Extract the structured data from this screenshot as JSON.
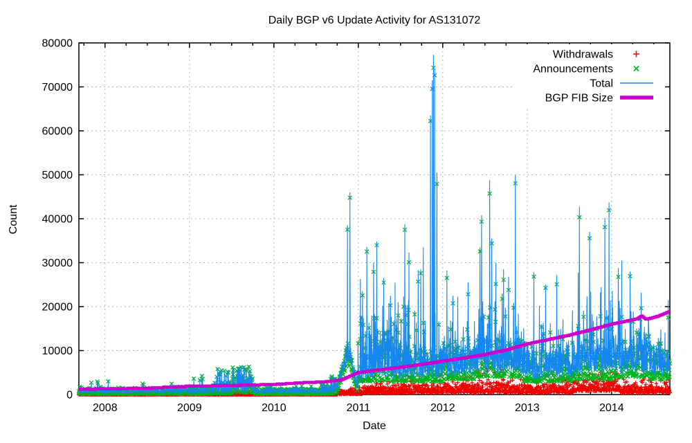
{
  "chart_data": {
    "type": "line+scatter",
    "title": "Daily BGP v6 Update Activity for AS131072",
    "xlabel": "Date",
    "ylabel": "Count",
    "x_domain": [
      2007.69,
      2014.69
    ],
    "y_range": [
      0,
      80000
    ],
    "grid": true,
    "x_ticks": [
      {
        "year": 2008,
        "label": "2008"
      },
      {
        "year": 2009,
        "label": "2009"
      },
      {
        "year": 2010,
        "label": "2010"
      },
      {
        "year": 2011,
        "label": "2011"
      },
      {
        "year": 2012,
        "label": "2012"
      },
      {
        "year": 2013,
        "label": "2013"
      },
      {
        "year": 2014,
        "label": "2014"
      }
    ],
    "x_minor_tick_step": 0.25,
    "y_ticks": [
      {
        "value": 0,
        "label": "0"
      },
      {
        "value": 10000,
        "label": "10000"
      },
      {
        "value": 20000,
        "label": "20000"
      },
      {
        "value": 30000,
        "label": "30000"
      },
      {
        "value": 40000,
        "label": "40000"
      },
      {
        "value": 50000,
        "label": "50000"
      },
      {
        "value": 60000,
        "label": "60000"
      },
      {
        "value": 70000,
        "label": "70000"
      },
      {
        "value": 80000,
        "label": "80000"
      }
    ],
    "colors": {
      "withdrawals": "#ee0000",
      "announcements": "#00b31e",
      "total": "#1787f0",
      "fib": "#cc00cc",
      "grid": "#b3b3b3",
      "axis": "#000000"
    },
    "legend": [
      {
        "label": "Withdrawals",
        "marker": "plus-marker",
        "series": "withdrawals"
      },
      {
        "label": "Announcements",
        "marker": "cross-marker",
        "series": "announcements"
      },
      {
        "label": "Total",
        "marker": "line-sample",
        "series": "total"
      },
      {
        "label": "BGP FIB Size",
        "marker": "thick-line-sample",
        "series": "fib"
      }
    ],
    "series": {
      "withdrawals": {
        "style": "scatter-plus",
        "envelope": [
          [
            2007.69,
            2010.75,
            5,
            180,
            500,
            0.03
          ],
          [
            2010.75,
            2011.05,
            100,
            900,
            1800,
            0.08
          ],
          [
            2011.05,
            2011.55,
            300,
            1800,
            3200,
            0.08
          ],
          [
            2011.55,
            2012.4,
            400,
            2200,
            4200,
            0.08
          ],
          [
            2012.4,
            2012.75,
            500,
            2800,
            6000,
            0.1
          ],
          [
            2012.75,
            2013.55,
            400,
            2200,
            4000,
            0.08
          ],
          [
            2013.55,
            2014.1,
            800,
            3400,
            5200,
            0.1
          ],
          [
            2014.1,
            2014.7,
            400,
            2000,
            3600,
            0.08
          ]
        ]
      },
      "announcements": {
        "style": "scatter-cross",
        "envelope": [
          [
            2007.69,
            2009.28,
            120,
            1500,
            4600,
            0.03
          ],
          [
            2009.28,
            2009.56,
            250,
            2800,
            6300,
            0.1
          ],
          [
            2009.56,
            2009.76,
            500,
            4200,
            6300,
            0.12
          ],
          [
            2009.76,
            2010.55,
            120,
            1300,
            2800,
            0.04
          ],
          [
            2010.55,
            2010.76,
            200,
            2200,
            5000,
            0.08
          ],
          [
            2010.99,
            2011.5,
            3000,
            12500,
            17500,
            0.1
          ],
          [
            2011.5,
            2012.0,
            3000,
            11000,
            20000,
            0.08
          ],
          [
            2012.0,
            2012.4,
            3500,
            10500,
            16000,
            0.08
          ],
          [
            2012.4,
            2012.95,
            4000,
            12500,
            22000,
            0.1
          ],
          [
            2012.95,
            2013.6,
            3000,
            9500,
            16000,
            0.07
          ],
          [
            2013.6,
            2014.05,
            3500,
            11000,
            18000,
            0.09
          ],
          [
            2014.05,
            2014.45,
            4000,
            12500,
            18500,
            0.1
          ],
          [
            2014.45,
            2014.7,
            3500,
            10500,
            15500,
            0.07
          ]
        ],
        "ramp_hump": {
          "start": 2010.76,
          "peak": 2010.875,
          "end": 2010.99,
          "min_base": 800,
          "min_peak": 7300,
          "max_base": 2500,
          "max_peak": 12000
        }
      },
      "total": {
        "style": "line"
      },
      "bgp_fib_size": {
        "style": "thick-line",
        "points": [
          [
            2007.69,
            1200
          ],
          [
            2008.0,
            1300
          ],
          [
            2008.5,
            1450
          ],
          [
            2009.0,
            1900
          ],
          [
            2009.5,
            2050
          ],
          [
            2010.0,
            2300
          ],
          [
            2010.35,
            2700
          ],
          [
            2010.6,
            2900
          ],
          [
            2010.8,
            3300
          ],
          [
            2011.0,
            5000
          ],
          [
            2011.25,
            5600
          ],
          [
            2011.5,
            6200
          ],
          [
            2011.84,
            7100
          ],
          [
            2012.0,
            7600
          ],
          [
            2012.25,
            8300
          ],
          [
            2012.5,
            9100
          ],
          [
            2012.75,
            10100
          ],
          [
            2013.0,
            11500
          ],
          [
            2013.25,
            12500
          ],
          [
            2013.5,
            13500
          ],
          [
            2013.75,
            14700
          ],
          [
            2014.0,
            16000
          ],
          [
            2014.15,
            16600
          ],
          [
            2014.3,
            17200
          ],
          [
            2014.36,
            17900
          ],
          [
            2014.41,
            17100
          ],
          [
            2014.55,
            17800
          ],
          [
            2014.69,
            18900
          ]
        ]
      }
    },
    "spikes": [
      [
        2009.46,
        5600
      ],
      [
        2009.52,
        5900
      ],
      [
        2009.58,
        5200
      ],
      [
        2009.65,
        6300
      ],
      [
        2009.72,
        4800
      ],
      [
        2010.87,
        38500
      ],
      [
        2010.9,
        46000
      ],
      [
        2011.05,
        23500
      ],
      [
        2011.1,
        33600
      ],
      [
        2011.18,
        30000
      ],
      [
        2011.22,
        34800
      ],
      [
        2011.3,
        26500
      ],
      [
        2011.38,
        22500
      ],
      [
        2011.47,
        21000
      ],
      [
        2011.55,
        38800
      ],
      [
        2011.6,
        32300
      ],
      [
        2011.71,
        28300
      ],
      [
        2011.74,
        28500
      ],
      [
        2011.855,
        63500
      ],
      [
        2011.875,
        71500
      ],
      [
        2011.89,
        77300
      ],
      [
        2011.905,
        74200
      ],
      [
        2011.93,
        50500
      ],
      [
        2012.05,
        28200
      ],
      [
        2012.12,
        22500
      ],
      [
        2012.3,
        25500
      ],
      [
        2012.44,
        33500
      ],
      [
        2012.46,
        40800
      ],
      [
        2012.555,
        48800
      ],
      [
        2012.58,
        35500
      ],
      [
        2012.63,
        30000
      ],
      [
        2012.72,
        28500
      ],
      [
        2012.78,
        26800
      ],
      [
        2012.86,
        49900
      ],
      [
        2013.08,
        27800
      ],
      [
        2013.22,
        25000
      ],
      [
        2013.35,
        27200
      ],
      [
        2013.62,
        42800
      ],
      [
        2013.74,
        37000
      ],
      [
        2013.92,
        40200
      ],
      [
        2013.97,
        43700
      ],
      [
        2014.08,
        28800
      ],
      [
        2014.22,
        28000
      ],
      [
        2014.35,
        23200
      ],
      [
        2014.67,
        21500
      ]
    ]
  }
}
